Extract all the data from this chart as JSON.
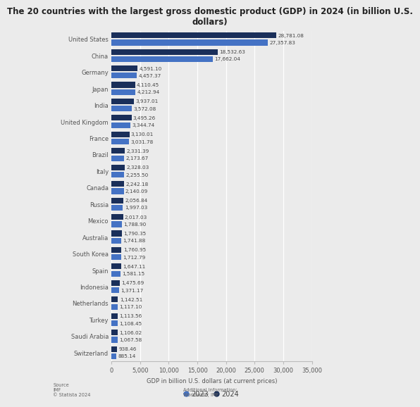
{
  "title": "The 20 countries with the largest gross domestic product (GDP) in 2024 (in billion U.S.\ndollars)",
  "countries": [
    "United States",
    "China",
    "Germany",
    "Japan",
    "India",
    "United Kingdom",
    "France",
    "Brazil",
    "Italy",
    "Canada",
    "Russia",
    "Mexico",
    "Australia",
    "South Korea",
    "Spain",
    "Indonesia",
    "Netherlands",
    "Turkey",
    "Saudi Arabia",
    "Switzerland"
  ],
  "gdp_2024": [
    28781.08,
    18532.63,
    4591.1,
    4110.45,
    3937.01,
    3495.26,
    3130.01,
    2331.39,
    2328.03,
    2242.18,
    2056.84,
    2017.03,
    1790.35,
    1760.95,
    1647.11,
    1475.69,
    1142.51,
    1113.56,
    1106.02,
    938.46
  ],
  "gdp_2023": [
    27357.83,
    17662.04,
    4457.37,
    4212.94,
    3572.08,
    3344.74,
    3031.78,
    2173.67,
    2255.5,
    2140.09,
    1997.03,
    1788.9,
    1741.88,
    1712.79,
    1581.15,
    1371.17,
    1117.1,
    1108.45,
    1067.58,
    885.14
  ],
  "color_2024": "#1a2f5a",
  "color_2023": "#4472c4",
  "xlabel": "GDP in billion U.S. dollars (at current prices)",
  "xlim": [
    0,
    35000
  ],
  "xticks": [
    0,
    5000,
    10000,
    15000,
    20000,
    25000,
    30000,
    35000
  ],
  "bg_color": "#ebebeb",
  "plot_bg": "#e8e8e8",
  "source_text": "Source\nIMF\n© Statista 2024",
  "additional_text": "Additional Information:\nWorldwide; IMF",
  "legend_2023": "2023",
  "legend_2024": "2024",
  "title_fontsize": 8.5,
  "label_fontsize": 6.0,
  "value_fontsize": 5.2,
  "tick_fontsize": 6.0
}
